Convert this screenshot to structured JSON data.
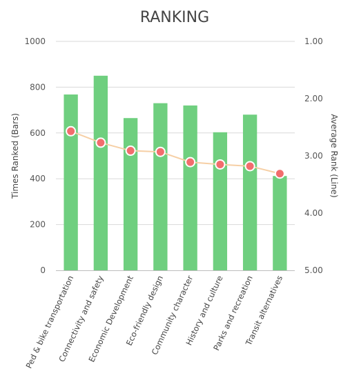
{
  "chart_data": {
    "type": "bar",
    "title": "RANKING",
    "categories": [
      "Ped & bike transportation",
      "Connectivity and safety",
      "Economic Development",
      "Eco-friendly design",
      "Community character",
      "History and culture",
      "Parks and recreation",
      "Transit alternatives"
    ],
    "series": [
      {
        "name": "Times Ranked (Bars)",
        "type": "bar",
        "axis": "left",
        "color": "#6fcf7f",
        "values": [
          768,
          850,
          665,
          730,
          720,
          603,
          680,
          412
        ]
      },
      {
        "name": "Average Rank (Line)",
        "type": "line",
        "axis": "right",
        "line_color": "#f6cfa5",
        "marker_color": "#f26d6d",
        "values": [
          2.57,
          2.77,
          2.91,
          2.93,
          3.11,
          3.15,
          3.18,
          3.31
        ]
      }
    ],
    "ylabel_left": "Times Ranked (Bars)",
    "ylabel_right": "Average Rank (Line)",
    "ylim_left": [
      0,
      1000
    ],
    "yticks_left": [
      "0",
      "200",
      "400",
      "600",
      "800",
      "1000"
    ],
    "ylim_right": [
      1,
      5
    ],
    "right_axis_reversed": true,
    "yticks_right": [
      "1.00",
      "2.00",
      "3.00",
      "4.00",
      "5.00"
    ],
    "grid": true,
    "legend": "none"
  }
}
